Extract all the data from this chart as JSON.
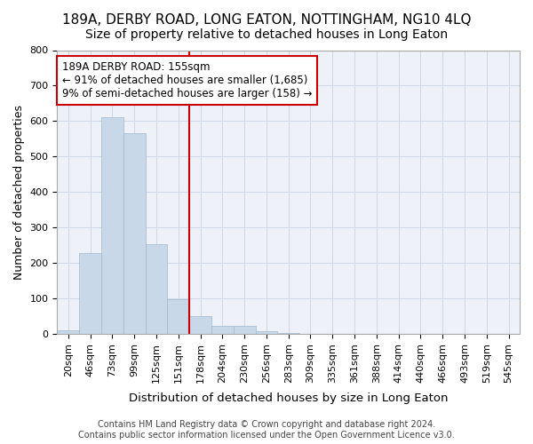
{
  "title": "189A, DERBY ROAD, LONG EATON, NOTTINGHAM, NG10 4LQ",
  "subtitle": "Size of property relative to detached houses in Long Eaton",
  "xlabel": "Distribution of detached houses by size in Long Eaton",
  "ylabel": "Number of detached properties",
  "bar_labels": [
    "20sqm",
    "46sqm",
    "73sqm",
    "99sqm",
    "125sqm",
    "151sqm",
    "178sqm",
    "204sqm",
    "230sqm",
    "256sqm",
    "283sqm",
    "309sqm",
    "335sqm",
    "361sqm",
    "388sqm",
    "414sqm",
    "440sqm",
    "466sqm",
    "493sqm",
    "519sqm",
    "545sqm"
  ],
  "bar_values": [
    10,
    228,
    612,
    565,
    252,
    97,
    50,
    23,
    23,
    8,
    2,
    0,
    0,
    0,
    0,
    0,
    0,
    0,
    0,
    0,
    0
  ],
  "bar_color": "#c8d8e8",
  "bar_edge_color": "#a0b8d0",
  "vline_x": 5.5,
  "vline_color": "#cc0000",
  "annotation_text": "189A DERBY ROAD: 155sqm\n← 91% of detached houses are smaller (1,685)\n9% of semi-detached houses are larger (158) →",
  "annotation_box_color": "#ffffff",
  "annotation_box_edge": "#cc0000",
  "ylim": [
    0,
    800
  ],
  "yticks": [
    0,
    100,
    200,
    300,
    400,
    500,
    600,
    700,
    800
  ],
  "grid_color": "#d0d8e8",
  "background_color": "#eef2f8",
  "footer_text": "Contains HM Land Registry data © Crown copyright and database right 2024.\nContains public sector information licensed under the Open Government Licence v3.0.",
  "title_fontsize": 11,
  "subtitle_fontsize": 10,
  "xlabel_fontsize": 9.5,
  "ylabel_fontsize": 9,
  "tick_fontsize": 8,
  "annotation_fontsize": 8.5,
  "footer_fontsize": 7
}
